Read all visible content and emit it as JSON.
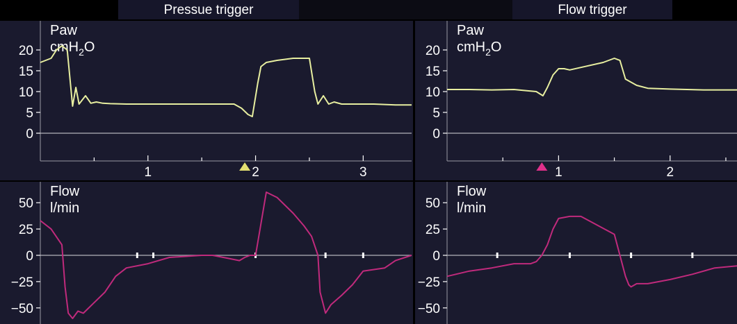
{
  "header": {
    "left_title": "Pressue trigger",
    "right_title": "Flow trigger"
  },
  "colors": {
    "panel_bg": "#1a1a2e",
    "pressure_trace": "#e8efa0",
    "flow_trace": "#c02a7c",
    "baseline": "#9a9aa4",
    "marker_left": "#e4e070",
    "marker_right": "#e0308a"
  },
  "chart_data": [
    {
      "type": "line",
      "panel": "left-pressure",
      "label_line1": "Paw",
      "label_line2": "cmH",
      "label_sub": "2",
      "label_tail": "O",
      "yticks": [
        "20",
        "15",
        "10",
        "5",
        "0"
      ],
      "ytick_values": [
        20,
        15,
        10,
        5,
        0
      ],
      "ylim": [
        -6,
        25
      ],
      "xlim": [
        0,
        3.45
      ],
      "x": [
        0,
        0.1,
        0.15,
        0.2,
        0.25,
        0.3,
        0.33,
        0.36,
        0.42,
        0.47,
        0.52,
        0.58,
        0.65,
        0.8,
        1.0,
        1.2,
        1.5,
        1.7,
        1.8,
        1.87,
        1.93,
        1.97,
        2.02,
        2.05,
        2.1,
        2.2,
        2.35,
        2.5,
        2.55,
        2.58,
        2.63,
        2.68,
        2.73,
        2.8,
        2.9,
        3.1,
        3.3,
        3.45
      ],
      "y": [
        17,
        18,
        20,
        21,
        20,
        6.5,
        11,
        7,
        9,
        7.2,
        7.5,
        7.2,
        7.1,
        7,
        7,
        7,
        7,
        7,
        7,
        6,
        4.5,
        4,
        12,
        16,
        17,
        17.5,
        18,
        18,
        10,
        7,
        9,
        7,
        7.5,
        7,
        7,
        7,
        6.8,
        6.8
      ],
      "xticks": [
        "1",
        "2",
        "3"
      ],
      "xtick_values": [
        1,
        2,
        3
      ],
      "marker_x": 1.9
    },
    {
      "type": "line",
      "panel": "left-flow",
      "label_line1": "Flow",
      "label_line2": "l/min",
      "yticks": [
        "50",
        "25",
        "0",
        "−25",
        "−50"
      ],
      "ytick_values": [
        50,
        25,
        0,
        -25,
        -50
      ],
      "ylim": [
        -62,
        62
      ],
      "xlim": [
        0,
        3.45
      ],
      "x": [
        0,
        0.1,
        0.2,
        0.23,
        0.26,
        0.3,
        0.35,
        0.4,
        0.5,
        0.6,
        0.7,
        0.8,
        1.0,
        1.2,
        1.5,
        1.6,
        1.75,
        1.85,
        1.9,
        1.95,
        2.0,
        2.05,
        2.1,
        2.2,
        2.35,
        2.45,
        2.52,
        2.58,
        2.6,
        2.65,
        2.7,
        2.8,
        2.9,
        3.0,
        3.2,
        3.3,
        3.45
      ],
      "y": [
        33,
        25,
        10,
        -30,
        -55,
        -60,
        -53,
        -55,
        -45,
        -35,
        -20,
        -12,
        -8,
        -2,
        0,
        0,
        -3,
        -5,
        -2,
        0,
        0,
        30,
        60,
        55,
        40,
        28,
        18,
        0,
        -35,
        -55,
        -47,
        -38,
        -28,
        -15,
        -12,
        -5,
        0
      ],
      "tick_marks_x": [
        0.9,
        1.05,
        2.0,
        2.65,
        3.0
      ]
    },
    {
      "type": "line",
      "panel": "right-pressure",
      "label_line1": "Paw",
      "label_line2": "cmH",
      "label_sub": "2",
      "label_tail": "O",
      "yticks": [
        "20",
        "15",
        "10",
        "5",
        "0"
      ],
      "ytick_values": [
        20,
        15,
        10,
        5,
        0
      ],
      "ylim": [
        -6,
        25
      ],
      "xlim": [
        0,
        2.6
      ],
      "x": [
        0,
        0.2,
        0.4,
        0.6,
        0.8,
        0.86,
        0.9,
        0.95,
        1.0,
        1.05,
        1.1,
        1.2,
        1.4,
        1.5,
        1.55,
        1.6,
        1.7,
        1.8,
        2.0,
        2.3,
        2.6
      ],
      "y": [
        10.5,
        10.5,
        10.4,
        10.5,
        10,
        9,
        11,
        14,
        15.5,
        15.5,
        15.2,
        15.8,
        17,
        18,
        17.5,
        13,
        11.5,
        10.8,
        10.6,
        10.4,
        10.4
      ],
      "xticks": [
        "1",
        "2"
      ],
      "xtick_values": [
        1,
        2
      ],
      "marker_x": 0.85
    },
    {
      "type": "line",
      "panel": "right-flow",
      "label_line1": "Flow",
      "label_line2": "l/min",
      "yticks": [
        "50",
        "25",
        "0",
        "−25",
        "−50"
      ],
      "ytick_values": [
        50,
        25,
        0,
        -25,
        -50
      ],
      "ylim": [
        -62,
        62
      ],
      "xlim": [
        0,
        2.6
      ],
      "x": [
        0,
        0.2,
        0.4,
        0.6,
        0.75,
        0.8,
        0.85,
        0.9,
        0.95,
        1.0,
        1.1,
        1.2,
        1.5,
        1.55,
        1.6,
        1.63,
        1.65,
        1.7,
        1.8,
        2.0,
        2.2,
        2.4,
        2.6
      ],
      "y": [
        -20,
        -15,
        -12,
        -8,
        -8,
        -6,
        0,
        10,
        25,
        35,
        37,
        37,
        20,
        0,
        -20,
        -28,
        -30,
        -27,
        -27,
        -23,
        -18,
        -12,
        -10
      ],
      "tick_marks_x": [
        0.45,
        1.1,
        1.65,
        2.2
      ]
    }
  ]
}
